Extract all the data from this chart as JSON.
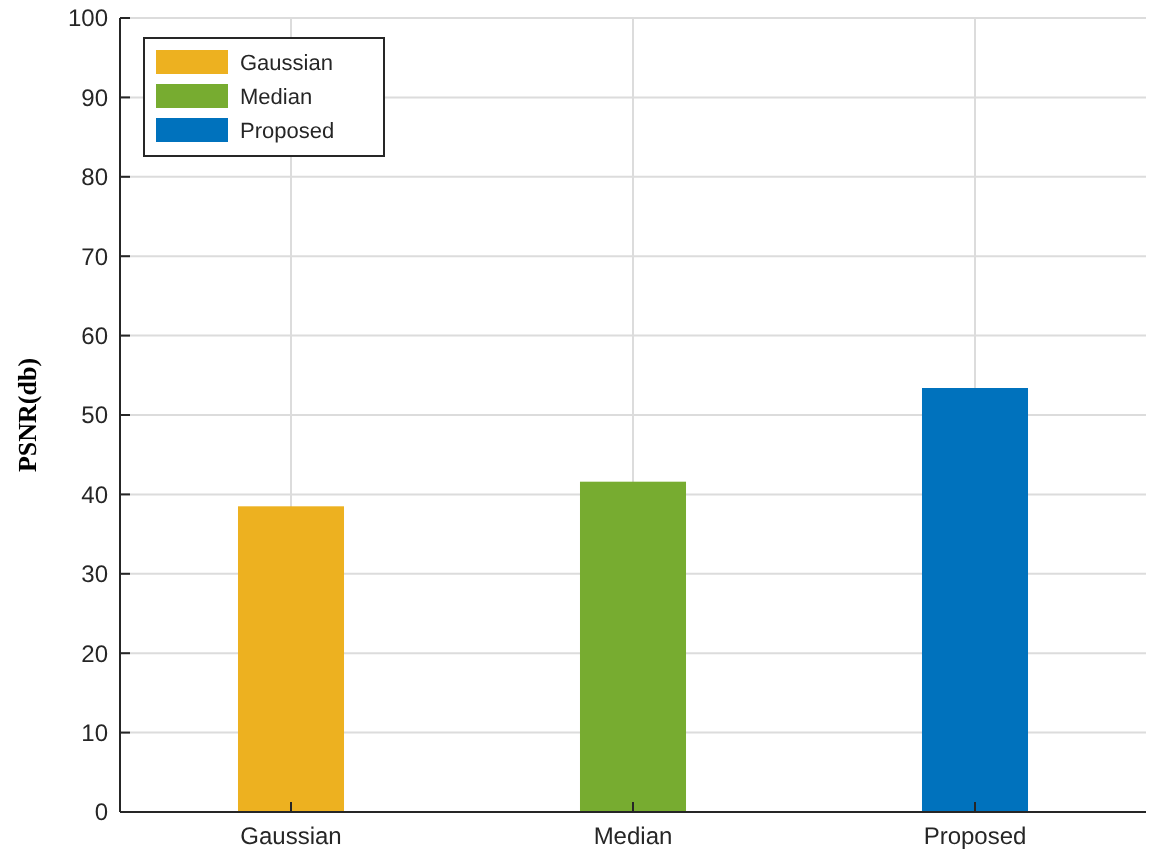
{
  "chart_data": {
    "type": "bar",
    "ylabel": "PSNR(db)",
    "categories": [
      "Gaussian",
      "Median",
      "Proposed"
    ],
    "series": [
      {
        "name": "Gaussian",
        "color": "#edb120",
        "values": [
          38.5,
          null,
          null
        ]
      },
      {
        "name": "Median",
        "color": "#77ac30",
        "values": [
          null,
          41.6,
          null
        ]
      },
      {
        "name": "Proposed",
        "color": "#0072bd",
        "values": [
          null,
          null,
          53.4
        ]
      }
    ],
    "ylim": [
      0,
      100
    ],
    "yticks": [
      0,
      10,
      20,
      30,
      40,
      50,
      60,
      70,
      80,
      90,
      100
    ],
    "grid": true,
    "legend": "top left"
  }
}
